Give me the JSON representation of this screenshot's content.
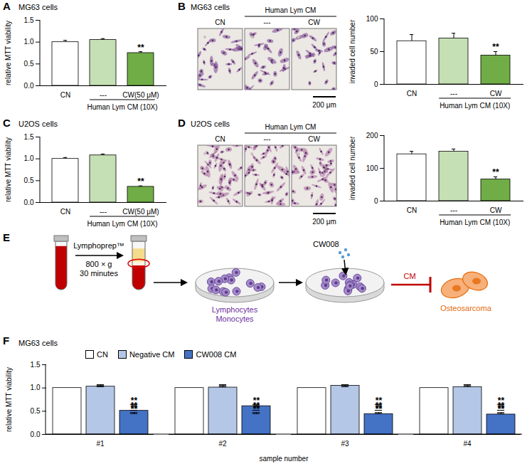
{
  "chart_data": [
    {
      "panel": "A",
      "type": "bar",
      "title": "MG63 cells",
      "categories": [
        "CN",
        "---",
        "CW(50 μM)"
      ],
      "values": [
        1.0,
        1.05,
        0.75
      ],
      "errors": [
        0.04,
        0.03,
        0.03
      ],
      "significance": [
        null,
        null,
        "**"
      ],
      "colors": [
        "#ffffff",
        "#c5e0b4",
        "#70ad47"
      ],
      "x_group": {
        "label": "Human Lym CM (10X)",
        "from": "---",
        "to": "CW(50 μM)"
      },
      "ylabel": "relative MTT viability",
      "ylim": [
        0,
        1.5
      ],
      "yticks": [
        {
          "value": 0,
          "label": "0.0"
        },
        0.5,
        {
          "value": 1,
          "label": "1.0"
        },
        1.5
      ]
    },
    {
      "type": "bar",
      "categories": [
        "CN",
        "---",
        "CW"
      ],
      "values": [
        66,
        70,
        44
      ],
      "errors": [
        10,
        8,
        6
      ],
      "significance": [
        null,
        null,
        "**"
      ],
      "colors": [
        "#ffffff",
        "#c5e0b4",
        "#70ad47"
      ],
      "x_group": {
        "label": "Human Lym CM (10X)",
        "from": "---",
        "to": "CW"
      },
      "ylabel": "invaded cell number",
      "ylim": [
        0,
        100
      ],
      "yticks": [
        0,
        50,
        100
      ]
    },
    {
      "panel": "C",
      "type": "bar",
      "title": "U2OS cells",
      "categories": [
        "CN",
        "---",
        "CW(50 μM)"
      ],
      "values": [
        1.0,
        1.08,
        0.36
      ],
      "errors": [
        0.03,
        0.03,
        0.02
      ],
      "significance": [
        null,
        null,
        "**"
      ],
      "colors": [
        "#ffffff",
        "#c5e0b4",
        "#70ad47"
      ],
      "x_group": {
        "label": "Human Lym CM (10X)",
        "from": "---",
        "to": "CW(50 μM)"
      },
      "ylabel": "relative MTT viability",
      "ylim": [
        0,
        1.5
      ],
      "yticks": [
        {
          "value": 0,
          "label": "0.0"
        },
        0.5,
        {
          "value": 1,
          "label": "1.0"
        },
        1.5
      ]
    },
    {
      "type": "bar",
      "categories": [
        "CN",
        "---",
        "CW"
      ],
      "values": [
        143,
        151,
        66
      ],
      "errors": [
        9,
        8,
        8
      ],
      "significance": [
        null,
        null,
        "**"
      ],
      "colors": [
        "#ffffff",
        "#c5e0b4",
        "#70ad47"
      ],
      "x_group": {
        "label": "Human Lym CM (10X)",
        "from": "---",
        "to": "CW"
      },
      "ylabel": "invaded cell number",
      "ylim": [
        0,
        200
      ],
      "yticks": [
        0,
        100,
        200
      ]
    },
    {
      "panel": "F",
      "type": "bar",
      "title": "MG63 cells",
      "categories": [
        "#1",
        "#2",
        "#3",
        "#4"
      ],
      "xlabel": "sample number",
      "ylabel": "relative MTT viability",
      "ylim": [
        0,
        1.5
      ],
      "yticks": [
        {
          "value": 0,
          "label": "0.0"
        },
        0.5,
        {
          "value": 1,
          "label": "1.0"
        },
        1.5
      ],
      "legend": "top",
      "series": [
        {
          "name": "CN",
          "color": "#ffffff",
          "values": [
            1.0,
            1.0,
            1.0,
            1.0
          ]
        },
        {
          "name": "Negative CM",
          "color": "#b4c7e7",
          "values": [
            1.03,
            1.01,
            1.05,
            1.02
          ],
          "errors": [
            0.03,
            0.02,
            0.02,
            0.01
          ]
        },
        {
          "name": "CW008 CM",
          "color": "#4472c4",
          "values": [
            0.51,
            0.61,
            0.44,
            0.43
          ],
          "errors": [
            0.01,
            0.03,
            0.03,
            0.02
          ],
          "significance": [
            "**",
            "**",
            "**",
            "**"
          ]
        }
      ]
    }
  ],
  "images": [
    {
      "panel": "B",
      "title": "MG63 cells",
      "group_label": "Human Lym CM",
      "labels": [
        "CN",
        "---",
        "CW"
      ],
      "scale_bar": "200 μm"
    },
    {
      "panel": "D",
      "title": "U2OS cells",
      "group_label": "Human Lym CM",
      "labels": [
        "CN",
        "---",
        "CW"
      ],
      "scale_bar": "200 μm"
    }
  ],
  "diagram": {
    "panel": "E",
    "reagent": "Lymphoprep™",
    "spin": [
      "800 × g",
      "30 minutes"
    ],
    "cells": [
      "Lymphocytes",
      "Monocytes"
    ],
    "drug": "CW008",
    "product": "CM",
    "target": "Osteosarcoma"
  }
}
